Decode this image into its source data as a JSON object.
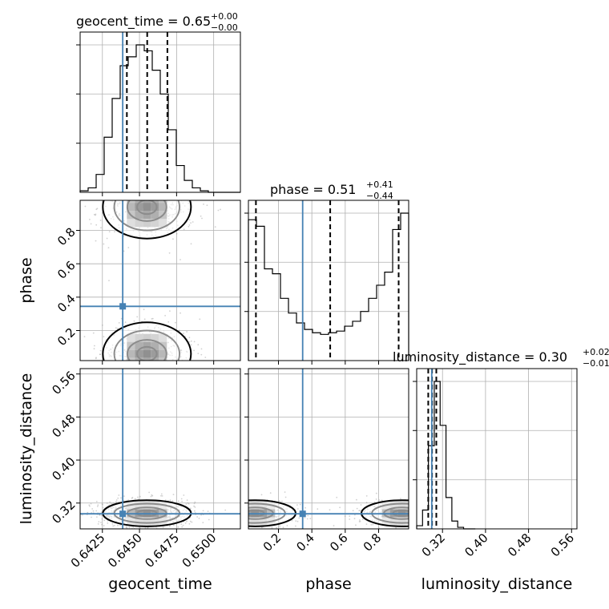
{
  "chart_data": {
    "type": "corner",
    "parameters": [
      "geocent_time",
      "phase",
      "luminosity_distance"
    ],
    "truth_color": "#4682b4",
    "truths": {
      "geocent_time": 0.64387,
      "phase": 0.345,
      "luminosity_distance": 0.3
    },
    "ranges": {
      "geocent_time": [
        0.641,
        0.6518
      ],
      "phase": [
        0.02,
        0.98
      ],
      "luminosity_distance": [
        0.272,
        0.57
      ]
    },
    "ticks": {
      "geocent_time": {
        "values": [
          0.6425,
          0.645,
          0.6475,
          0.65
        ],
        "labels": [
          "0.6425",
          "0.6450",
          "0.6475",
          "0.6500"
        ]
      },
      "phase": {
        "values": [
          0.2,
          0.4,
          0.6,
          0.8
        ],
        "labels": [
          "0.2",
          "0.4",
          "0.6",
          "0.8"
        ]
      },
      "luminosity_distance": {
        "values": [
          0.32,
          0.4,
          0.48,
          0.56
        ],
        "labels": [
          "0.32",
          "0.40",
          "0.48",
          "0.56"
        ]
      }
    },
    "titles": [
      {
        "param": "geocent_time",
        "prefix": "geocent_time = 0.65",
        "plus": "+0.00",
        "minus": "−0.00"
      },
      {
        "param": "phase",
        "prefix": "phase = 0.51",
        "plus": "+0.41",
        "minus": "−0.44"
      },
      {
        "param": "luminosity_distance",
        "prefix": "luminosity_distance = 0.30",
        "plus": "+0.02",
        "minus": "−0.01"
      }
    ],
    "quantiles": {
      "geocent_time": [
        0.64415,
        0.64552,
        0.64688
      ],
      "phase": [
        0.065,
        0.51,
        0.92
      ],
      "luminosity_distance": [
        0.2935,
        0.3005,
        0.3085
      ]
    },
    "histograms": {
      "geocent_time": {
        "edges": [
          0.641,
          0.64154,
          0.64208,
          0.64262,
          0.64316,
          0.6437,
          0.64424,
          0.64478,
          0.64532,
          0.64586,
          0.6464,
          0.64694,
          0.64748,
          0.64802,
          0.64856,
          0.6491,
          0.64964,
          0.65018,
          0.65072,
          0.65126,
          0.6518
        ],
        "counts": [
          1,
          3,
          12,
          37,
          63,
          85,
          91,
          99,
          95,
          82,
          66,
          42,
          18,
          8,
          3,
          1,
          0,
          0,
          0,
          0
        ]
      },
      "phase": {
        "edges": [
          0.02,
          0.068,
          0.116,
          0.164,
          0.212,
          0.26,
          0.308,
          0.356,
          0.404,
          0.452,
          0.5,
          0.548,
          0.596,
          0.644,
          0.692,
          0.74,
          0.788,
          0.836,
          0.884,
          0.932,
          0.98
        ],
        "counts": [
          86,
          82,
          56,
          53,
          38,
          29,
          23,
          19,
          17,
          16,
          17,
          18,
          21,
          24,
          30,
          38,
          46,
          54,
          80,
          90
        ]
      },
      "luminosity_distance": {
        "edges": [
          0.272,
          0.2829,
          0.2938,
          0.3047,
          0.3156,
          0.3265,
          0.3374,
          0.3483,
          0.3592,
          0.3701,
          0.381
        ],
        "counts": [
          2,
          12,
          53,
          94,
          66,
          20,
          5,
          1,
          0,
          0
        ]
      }
    }
  }
}
